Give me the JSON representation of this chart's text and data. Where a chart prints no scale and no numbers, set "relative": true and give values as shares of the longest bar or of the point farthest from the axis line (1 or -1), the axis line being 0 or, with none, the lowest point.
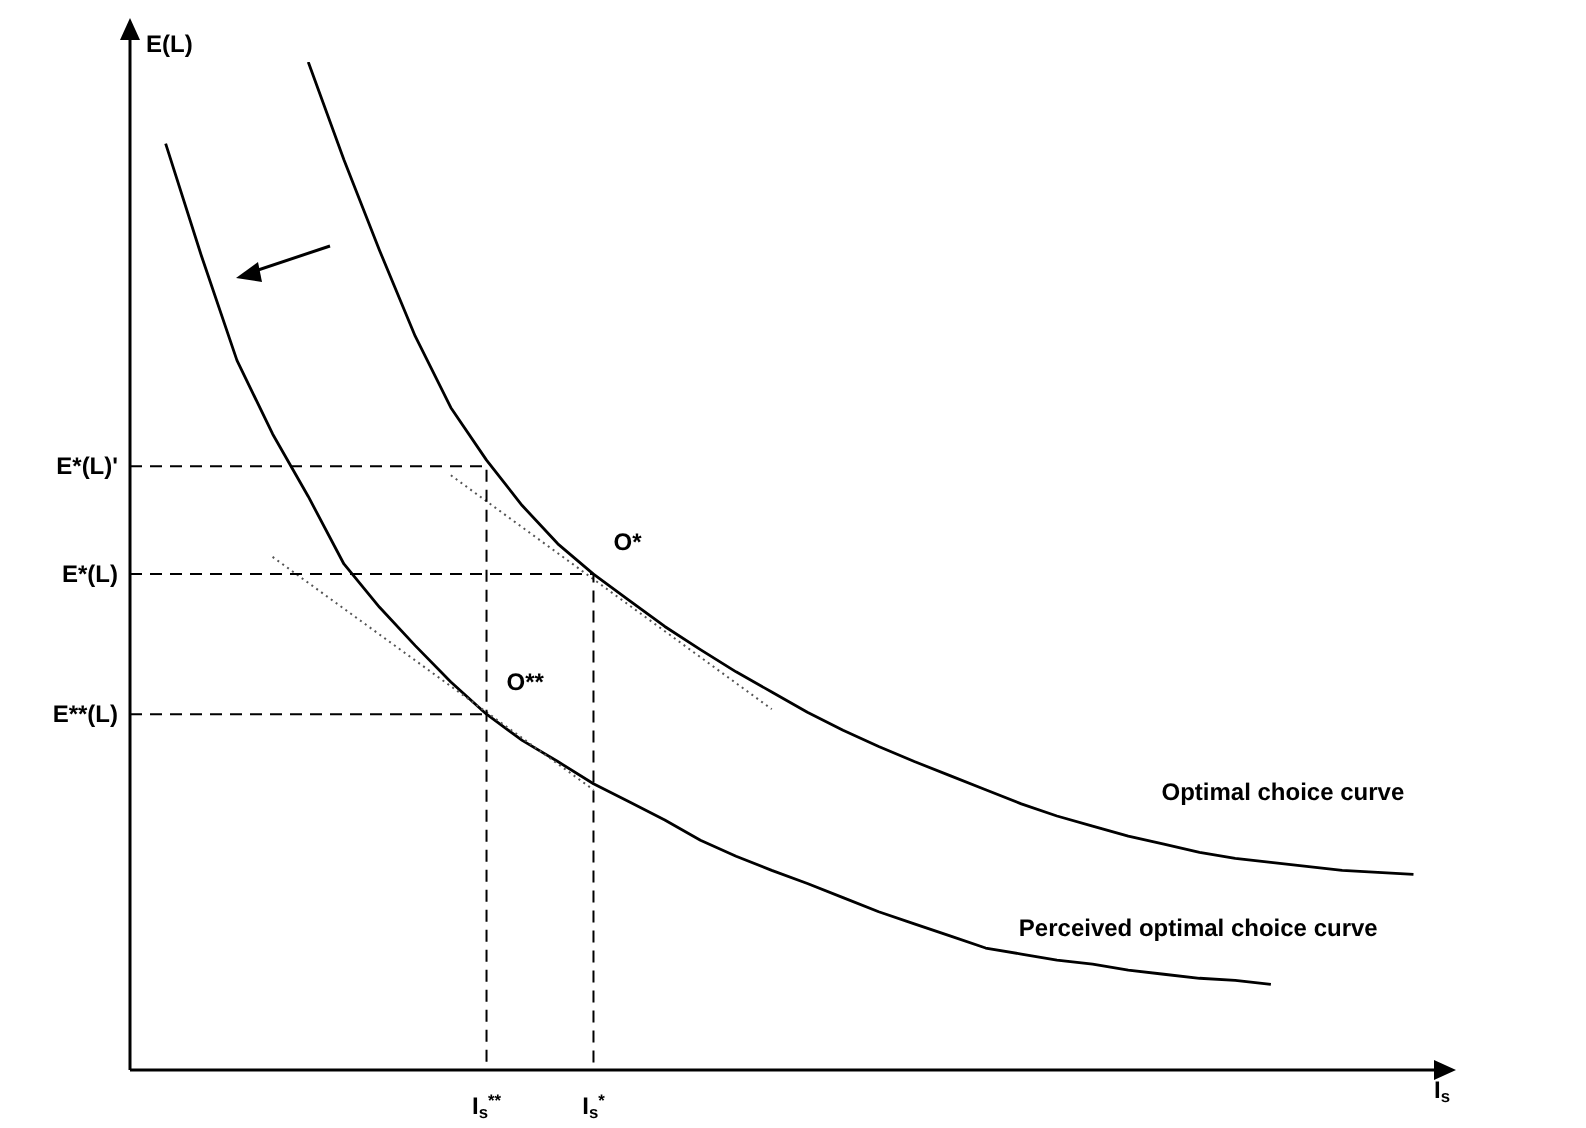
{
  "chart_data": {
    "type": "line",
    "relative": true,
    "xlabel": "I$_{s}$",
    "ylabel": "E(L)",
    "legend": false,
    "categories": [
      null,
      null,
      null,
      null,
      null,
      null,
      null,
      null,
      null,
      null,
      "I$_{s}$$^{**}$",
      null,
      null,
      "I$_{s}$$^{*}$",
      null,
      null,
      null,
      null,
      null,
      null,
      null,
      null,
      null,
      null,
      null,
      null,
      null,
      null,
      null,
      null,
      null,
      null,
      null,
      null,
      null,
      null,
      null
    ],
    "series": [
      {
        "name": "Optimal choice curve",
        "color": "#000000",
        "values": [
          null,
          null,
          null,
          null,
          null,
          1,
          0.903,
          0.813,
          0.728,
          0.657,
          0.605,
          0.56,
          0.522,
          0.492,
          0.466,
          0.44,
          0.417,
          0.395,
          0.375,
          0.355,
          0.337,
          0.321,
          0.306,
          0.292,
          0.278,
          0.264,
          0.252,
          0.242,
          0.232,
          0.224,
          0.216,
          0.21,
          0.206,
          0.202,
          0.198,
          0.196,
          0.194
        ]
      },
      {
        "name": "Perceived optimal choice curve",
        "color": "#000000",
        "values": [
          null,
          0.919,
          0.808,
          0.704,
          0.631,
          0.569,
          0.502,
          0.459,
          0.421,
          0.385,
          0.353,
          0.327,
          0.306,
          0.284,
          0.266,
          0.248,
          0.228,
          0.212,
          0.198,
          0.185,
          0.171,
          0.157,
          0.145,
          0.133,
          0.121,
          0.115,
          0.109,
          0.105,
          0.099,
          0.095,
          0.091,
          0.089,
          0.085,
          null,
          null,
          null,
          null
        ]
      },
      {
        "color": "#555555",
        "line_style": "dotted",
        "values": [
          null,
          null,
          null,
          null,
          null,
          null,
          null,
          null,
          null,
          0.59,
          null,
          null,
          null,
          null,
          null,
          null,
          null,
          null,
          0.358,
          null,
          null,
          null,
          null,
          null,
          null,
          null,
          null,
          null,
          null,
          null,
          null,
          null,
          null,
          null,
          null,
          null,
          null
        ]
      },
      {
        "color": "#555555",
        "line_style": "dotted",
        "values": [
          null,
          null,
          null,
          null,
          0.509,
          null,
          null,
          null,
          null,
          null,
          null,
          null,
          null,
          0.278,
          null,
          null,
          null,
          null,
          null,
          null,
          null,
          null,
          null,
          null,
          null,
          null,
          null,
          null,
          null,
          null,
          null,
          null,
          null,
          null,
          null,
          null,
          null
        ]
      },
      {
        "name": "E*(L)'",
        "type": "step",
        "color": "#000000",
        "line_style": "dashed",
        "values": [
          0.599,
          null,
          null,
          null,
          null,
          null,
          null,
          null,
          null,
          null,
          0,
          null,
          null,
          null,
          null,
          null,
          null,
          null,
          null,
          null,
          null,
          null,
          null,
          null,
          null,
          null,
          null,
          null,
          null,
          null,
          null,
          null,
          null,
          null,
          null,
          null,
          null
        ]
      },
      {
        "name": "E*(L)",
        "type": "step",
        "color": "#000000",
        "line_style": "dashed",
        "values": [
          0.492,
          null,
          null,
          null,
          null,
          null,
          null,
          null,
          null,
          null,
          null,
          null,
          null,
          0,
          null,
          null,
          null,
          null,
          null,
          null,
          null,
          null,
          null,
          null,
          null,
          null,
          null,
          null,
          null,
          null,
          null,
          null,
          null,
          null,
          null,
          null,
          null
        ]
      },
      {
        "name": "E**(L)",
        "color": "#000000",
        "line_style": "dashed",
        "values": [
          0.353,
          null,
          null,
          null,
          null,
          null,
          null,
          null,
          null,
          null,
          0.353,
          null,
          null,
          null,
          null,
          null,
          null,
          null,
          null,
          null,
          null,
          null,
          null,
          null,
          null,
          null,
          null,
          null,
          null,
          null,
          null,
          null,
          null,
          null,
          null,
          null,
          null
        ]
      }
    ],
    "annotations": [
      {
        "text": "O*",
        "x": "I$_{s}$$^{*}$",
        "y": 0.492
      },
      {
        "text": "O**",
        "x": "I$_{s}$$^{**}$",
        "y": 0.353
      }
    ]
  }
}
